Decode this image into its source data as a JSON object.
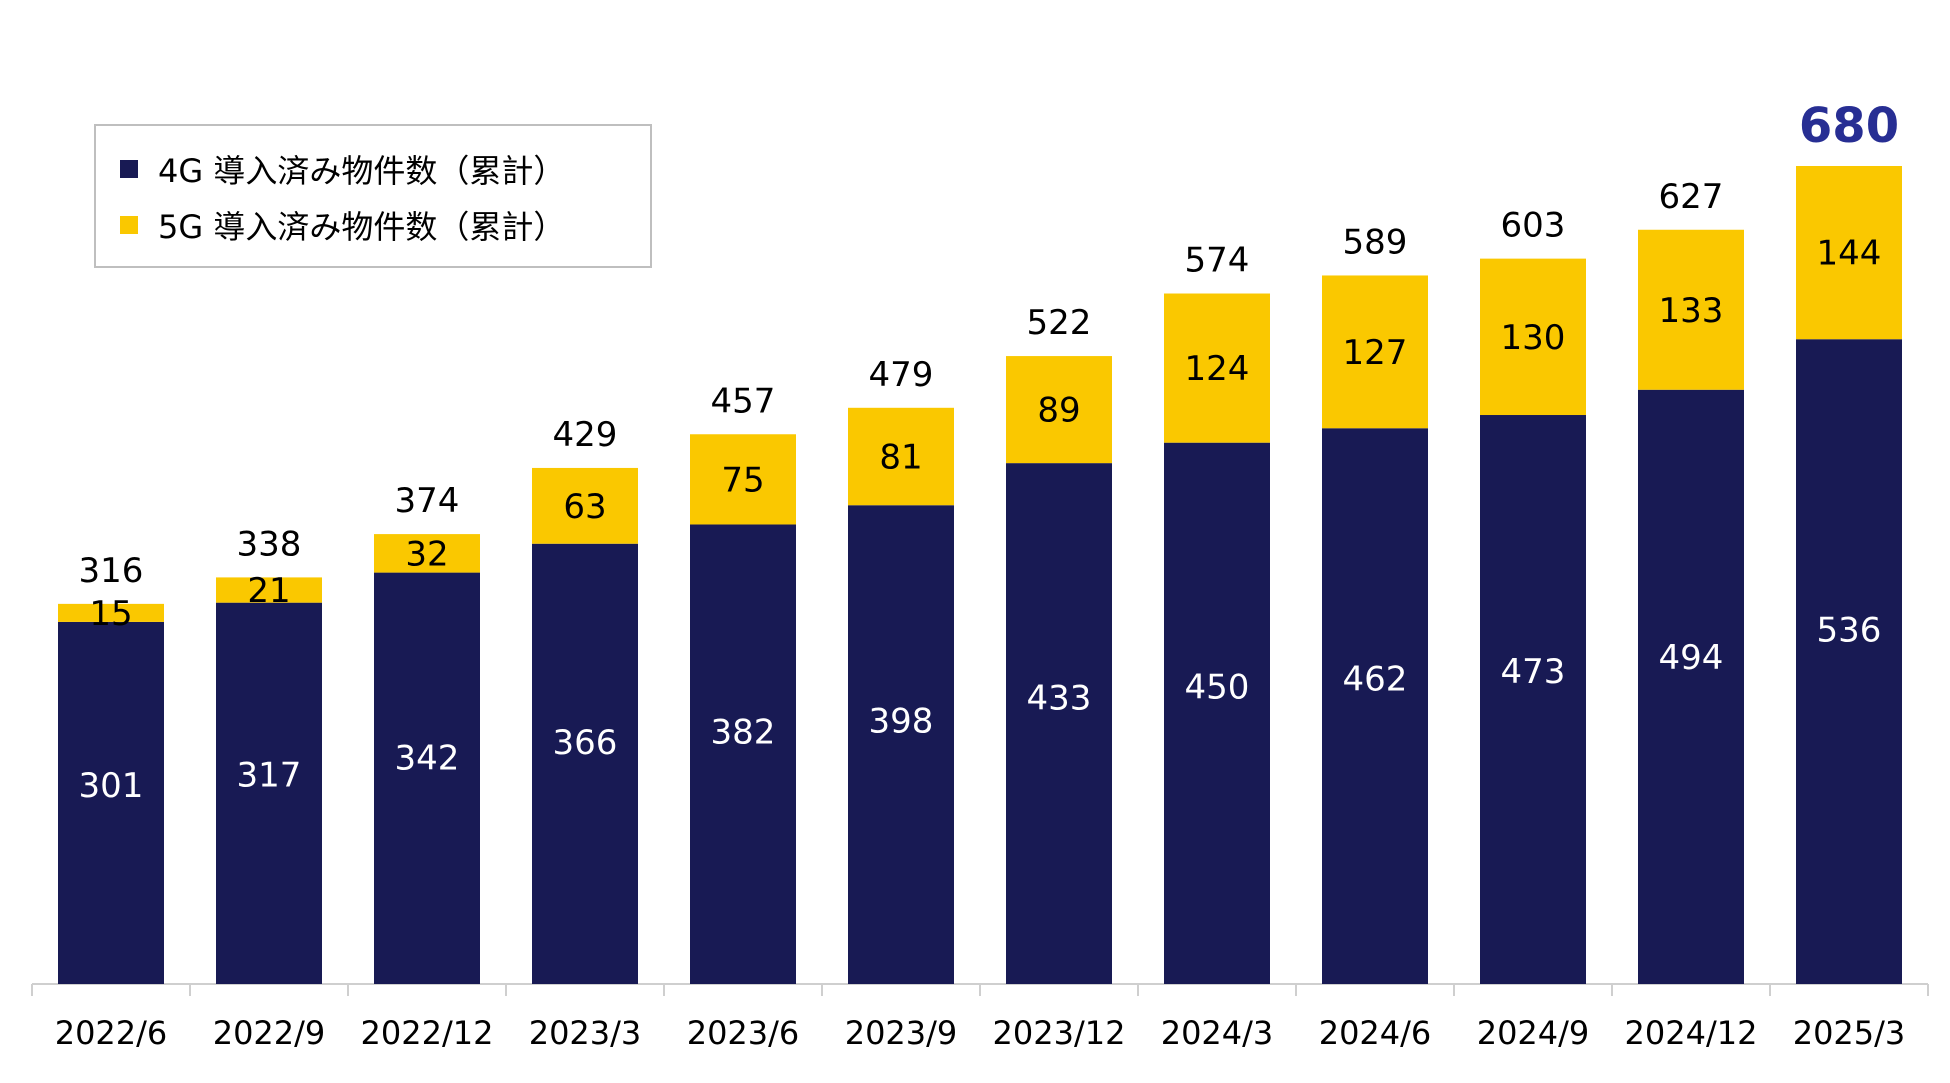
{
  "colors": {
    "series_4g": "#181a54",
    "series_5g": "#fac800",
    "axis": "#cfcfcf",
    "total_highlight": "#272e93",
    "text": "#000000",
    "inner_text": "#ffffff"
  },
  "legend": {
    "items": [
      {
        "label": "4G 導入済み物件数（累計）",
        "color": "#181a54"
      },
      {
        "label": "5G 導入済み物件数（累計）",
        "color": "#fac800"
      }
    ]
  },
  "chart_data": {
    "type": "bar",
    "stacked": true,
    "categories": [
      "2022/6",
      "2022/9",
      "2022/12",
      "2023/3",
      "2023/6",
      "2023/9",
      "2023/12",
      "2024/3",
      "2024/6",
      "2024/9",
      "2024/12",
      "2025/3"
    ],
    "series": [
      {
        "name": "4G 導入済み物件数（累計）",
        "values": [
          301,
          317,
          342,
          366,
          382,
          398,
          433,
          450,
          462,
          473,
          494,
          536
        ]
      },
      {
        "name": "5G 導入済み物件数（累計）",
        "values": [
          15,
          21,
          32,
          63,
          75,
          81,
          89,
          124,
          127,
          130,
          133,
          144
        ]
      }
    ],
    "totals": [
      316,
      338,
      374,
      429,
      457,
      479,
      522,
      574,
      589,
      603,
      627,
      680
    ],
    "highlight_last_total": true,
    "ylim": [
      0,
      680
    ],
    "legend_position": "top-left",
    "grid": false
  }
}
